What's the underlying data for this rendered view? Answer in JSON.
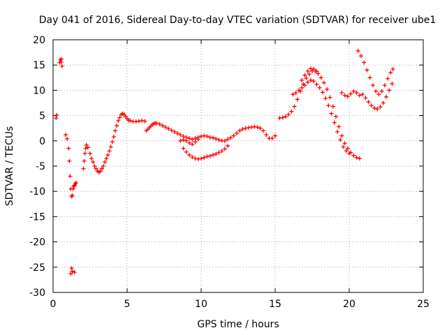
{
  "chart_data": {
    "type": "scatter",
    "title": "Day 041 of 2016, Sidereal Day-to-day VTEC variation (SDTVAR) for receiver ube1",
    "xlabel": "GPS time / hours",
    "ylabel": "SDTVAR / TECUs",
    "xlim": [
      0,
      25
    ],
    "ylim": [
      -30,
      20
    ],
    "x_ticks": [
      0,
      5,
      10,
      15,
      20,
      25
    ],
    "y_ticks": [
      -30,
      -25,
      -20,
      -15,
      -10,
      -5,
      0,
      5,
      10,
      15,
      20
    ],
    "grid": true,
    "marker": "+",
    "marker_color": "#ff0000",
    "series": [
      {
        "name": "ube1",
        "color": "#ff0000",
        "points": [
          [
            0.2,
            4.5
          ],
          [
            0.25,
            5.1
          ],
          [
            0.45,
            15.5
          ],
          [
            0.5,
            16.0
          ],
          [
            0.55,
            15.6
          ],
          [
            0.6,
            14.8
          ],
          [
            0.55,
            16.2
          ],
          [
            0.85,
            1.2
          ],
          [
            0.95,
            0.4
          ],
          [
            1.05,
            -1.5
          ],
          [
            1.1,
            -4.0
          ],
          [
            1.15,
            -7.0
          ],
          [
            1.2,
            -9.5
          ],
          [
            1.25,
            -11.0
          ],
          [
            1.3,
            -10.8
          ],
          [
            1.35,
            -9.5
          ],
          [
            1.4,
            -9.0
          ],
          [
            1.45,
            -8.8
          ],
          [
            1.5,
            -8.5
          ],
          [
            1.55,
            -8.3
          ],
          [
            1.2,
            -26.3
          ],
          [
            1.3,
            -25.8
          ],
          [
            1.45,
            -26.0
          ],
          [
            1.25,
            -25.2
          ],
          [
            2.05,
            -5.5
          ],
          [
            2.1,
            -4.0
          ],
          [
            2.15,
            -2.5
          ],
          [
            2.2,
            -1.5
          ],
          [
            2.25,
            -0.8
          ],
          [
            2.35,
            -1.3
          ],
          [
            2.5,
            -2.5
          ],
          [
            2.6,
            -3.5
          ],
          [
            2.7,
            -4.2
          ],
          [
            2.8,
            -5.0
          ],
          [
            2.9,
            -5.5
          ],
          [
            3.0,
            -6.0
          ],
          [
            3.1,
            -6.2
          ],
          [
            3.2,
            -6.0
          ],
          [
            3.3,
            -5.5
          ],
          [
            3.4,
            -5.0
          ],
          [
            3.5,
            -4.2
          ],
          [
            3.6,
            -3.5
          ],
          [
            3.7,
            -2.8
          ],
          [
            3.8,
            -2.0
          ],
          [
            3.9,
            -1.2
          ],
          [
            4.0,
            -0.2
          ],
          [
            4.1,
            0.8
          ],
          [
            4.2,
            2.0
          ],
          [
            4.3,
            3.0
          ],
          [
            4.4,
            4.0
          ],
          [
            4.5,
            4.6
          ],
          [
            4.6,
            5.2
          ],
          [
            4.7,
            5.4
          ],
          [
            4.8,
            5.2
          ],
          [
            4.9,
            4.8
          ],
          [
            5.0,
            4.4
          ],
          [
            5.1,
            4.1
          ],
          [
            5.2,
            4.0
          ],
          [
            5.4,
            3.8
          ],
          [
            5.6,
            3.8
          ],
          [
            5.8,
            3.9
          ],
          [
            6.0,
            4.0
          ],
          [
            6.2,
            3.9
          ],
          [
            6.3,
            2.0
          ],
          [
            6.4,
            2.3
          ],
          [
            6.5,
            2.6
          ],
          [
            6.6,
            2.9
          ],
          [
            6.7,
            3.2
          ],
          [
            6.8,
            3.4
          ],
          [
            6.9,
            3.5
          ],
          [
            7.0,
            3.5
          ],
          [
            7.2,
            3.3
          ],
          [
            7.4,
            3.0
          ],
          [
            7.6,
            2.7
          ],
          [
            7.8,
            2.4
          ],
          [
            8.0,
            2.1
          ],
          [
            8.2,
            1.8
          ],
          [
            8.4,
            1.5
          ],
          [
            8.6,
            1.2
          ],
          [
            8.8,
            0.9
          ],
          [
            9.0,
            0.7
          ],
          [
            9.2,
            0.5
          ],
          [
            9.4,
            0.3
          ],
          [
            9.6,
            0.5
          ],
          [
            9.8,
            0.7
          ],
          [
            10.0,
            0.9
          ],
          [
            10.2,
            1.0
          ],
          [
            10.4,
            0.9
          ],
          [
            10.6,
            0.7
          ],
          [
            10.8,
            0.6
          ],
          [
            11.0,
            0.4
          ],
          [
            11.2,
            0.2
          ],
          [
            11.4,
            0.0
          ],
          [
            11.6,
            0.0
          ],
          [
            11.8,
            0.3
          ],
          [
            12.0,
            0.6
          ],
          [
            12.2,
            1.0
          ],
          [
            12.4,
            1.5
          ],
          [
            12.6,
            2.0
          ],
          [
            12.8,
            2.3
          ],
          [
            13.0,
            2.5
          ],
          [
            13.2,
            2.6
          ],
          [
            13.4,
            2.7
          ],
          [
            13.6,
            2.8
          ],
          [
            13.8,
            2.7
          ],
          [
            14.0,
            2.5
          ],
          [
            14.2,
            2.0
          ],
          [
            14.4,
            1.2
          ],
          [
            14.6,
            0.5
          ],
          [
            14.8,
            0.5
          ],
          [
            15.0,
            1.0
          ],
          [
            8.8,
            -1.5
          ],
          [
            9.0,
            -2.2
          ],
          [
            9.2,
            -2.8
          ],
          [
            9.4,
            -3.2
          ],
          [
            9.6,
            -3.5
          ],
          [
            9.8,
            -3.6
          ],
          [
            10.0,
            -3.5
          ],
          [
            10.2,
            -3.3
          ],
          [
            10.4,
            -3.1
          ],
          [
            10.6,
            -3.0
          ],
          [
            10.8,
            -2.8
          ],
          [
            11.0,
            -2.6
          ],
          [
            11.2,
            -2.3
          ],
          [
            11.4,
            -2.0
          ],
          [
            11.6,
            -1.6
          ],
          [
            11.8,
            -1.0
          ],
          [
            8.6,
            0.0
          ],
          [
            8.8,
            0.2
          ],
          [
            9.0,
            0.0
          ],
          [
            9.2,
            -0.4
          ],
          [
            9.4,
            -0.7
          ],
          [
            9.6,
            -0.2
          ],
          [
            9.8,
            0.3
          ],
          [
            15.3,
            4.5
          ],
          [
            15.5,
            4.6
          ],
          [
            15.7,
            4.8
          ],
          [
            15.9,
            5.2
          ],
          [
            16.1,
            5.8
          ],
          [
            16.3,
            6.8
          ],
          [
            16.5,
            8.2
          ],
          [
            16.7,
            9.8
          ],
          [
            16.9,
            11.2
          ],
          [
            17.1,
            12.4
          ],
          [
            17.3,
            13.2
          ],
          [
            17.5,
            13.8
          ],
          [
            17.7,
            13.8
          ],
          [
            17.9,
            13.3
          ],
          [
            18.1,
            12.5
          ],
          [
            18.3,
            11.5
          ],
          [
            18.5,
            10.2
          ],
          [
            18.7,
            8.6
          ],
          [
            18.9,
            6.8
          ],
          [
            19.1,
            4.8
          ],
          [
            19.3,
            2.8
          ],
          [
            19.5,
            1.0
          ],
          [
            19.7,
            -0.5
          ],
          [
            19.9,
            -1.5
          ],
          [
            20.1,
            -2.3
          ],
          [
            20.3,
            -2.9
          ],
          [
            20.5,
            -3.3
          ],
          [
            20.7,
            -3.5
          ],
          [
            16.2,
            9.2
          ],
          [
            16.4,
            9.5
          ],
          [
            16.6,
            10.0
          ],
          [
            16.8,
            10.5
          ],
          [
            17.0,
            11.0
          ],
          [
            17.2,
            11.6
          ],
          [
            17.4,
            12.0
          ],
          [
            17.6,
            11.8
          ],
          [
            17.8,
            11.2
          ],
          [
            18.0,
            10.5
          ],
          [
            18.2,
            9.6
          ],
          [
            18.4,
            8.4
          ],
          [
            18.6,
            7.0
          ],
          [
            18.8,
            5.4
          ],
          [
            19.0,
            3.6
          ],
          [
            19.2,
            1.8
          ],
          [
            19.4,
            0.2
          ],
          [
            19.6,
            -1.2
          ],
          [
            19.8,
            -2.0
          ],
          [
            20.0,
            -2.5
          ],
          [
            16.8,
            12.0
          ],
          [
            17.0,
            13.0
          ],
          [
            17.2,
            13.8
          ],
          [
            17.4,
            14.3
          ],
          [
            17.6,
            14.2
          ],
          [
            17.8,
            13.8
          ],
          [
            19.5,
            9.5
          ],
          [
            19.7,
            9.0
          ],
          [
            19.9,
            8.8
          ],
          [
            20.1,
            9.3
          ],
          [
            20.3,
            9.8
          ],
          [
            20.5,
            9.5
          ],
          [
            20.7,
            9.0
          ],
          [
            20.9,
            9.2
          ],
          [
            21.1,
            8.5
          ],
          [
            21.3,
            7.7
          ],
          [
            21.5,
            7.0
          ],
          [
            21.7,
            6.5
          ],
          [
            21.9,
            6.3
          ],
          [
            22.1,
            6.7
          ],
          [
            22.3,
            7.5
          ],
          [
            22.5,
            8.7
          ],
          [
            22.7,
            10.0
          ],
          [
            22.9,
            11.3
          ],
          [
            20.6,
            17.8
          ],
          [
            20.8,
            16.8
          ],
          [
            21.0,
            15.5
          ],
          [
            21.2,
            14.0
          ],
          [
            21.4,
            12.5
          ],
          [
            21.6,
            11.0
          ],
          [
            21.8,
            9.8
          ],
          [
            22.0,
            9.2
          ],
          [
            22.2,
            9.8
          ],
          [
            22.4,
            11.0
          ],
          [
            22.6,
            12.3
          ],
          [
            22.8,
            13.5
          ],
          [
            22.95,
            14.2
          ]
        ]
      }
    ]
  }
}
